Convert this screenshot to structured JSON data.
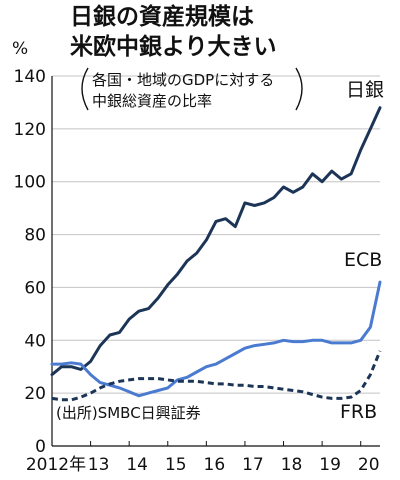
{
  "chart_data": {
    "type": "line",
    "title_lines": [
      "日銀の資産規模は",
      "米欧中銀より大きい"
    ],
    "subtitle_lines": [
      "各国・地域のGDPに対する",
      "中銀総資産の比率"
    ],
    "y_unit": "%",
    "ylim": [
      0,
      140
    ],
    "y_ticks": [
      0,
      20,
      40,
      60,
      80,
      100,
      120,
      140
    ],
    "xlim": [
      2012,
      2020.5
    ],
    "x_ticks": [
      {
        "value": 2012,
        "label": "2012年"
      },
      {
        "value": 2013,
        "label": "13"
      },
      {
        "value": 2014,
        "label": "14"
      },
      {
        "value": 2015,
        "label": "15"
      },
      {
        "value": 2016,
        "label": "16"
      },
      {
        "value": 2017,
        "label": "17"
      },
      {
        "value": 2018,
        "label": "18"
      },
      {
        "value": 2019,
        "label": "19"
      },
      {
        "value": 2020,
        "label": "20"
      }
    ],
    "grid": true,
    "series": [
      {
        "name": "日銀",
        "color": "#1c3557",
        "style": "solid",
        "x": [
          2012,
          2012.25,
          2012.5,
          2012.75,
          2013,
          2013.25,
          2013.5,
          2013.75,
          2014,
          2014.25,
          2014.5,
          2014.75,
          2015,
          2015.25,
          2015.5,
          2015.75,
          2016,
          2016.25,
          2016.5,
          2016.75,
          2017,
          2017.25,
          2017.5,
          2017.75,
          2018,
          2018.25,
          2018.5,
          2018.75,
          2019,
          2019.25,
          2019.5,
          2019.75,
          2020,
          2020.25,
          2020.5
        ],
        "values": [
          27,
          30,
          30,
          29,
          32,
          38,
          42,
          43,
          48,
          51,
          52,
          56,
          61,
          65,
          70,
          73,
          78,
          85,
          86,
          83,
          92,
          91,
          92,
          94,
          98,
          96,
          98,
          103,
          100,
          104,
          101,
          103,
          112,
          120,
          128
        ]
      },
      {
        "name": "ECB",
        "color": "#4a7bd0",
        "style": "solid",
        "x": [
          2012,
          2012.25,
          2012.5,
          2012.75,
          2013,
          2013.25,
          2013.5,
          2013.75,
          2014,
          2014.25,
          2014.5,
          2014.75,
          2015,
          2015.25,
          2015.5,
          2015.75,
          2016,
          2016.25,
          2016.5,
          2016.75,
          2017,
          2017.25,
          2017.5,
          2017.75,
          2018,
          2018.25,
          2018.5,
          2018.75,
          2019,
          2019.25,
          2019.5,
          2019.75,
          2020,
          2020.25,
          2020.5
        ],
        "values": [
          31,
          31,
          31.5,
          31,
          27,
          24,
          23,
          22,
          20.5,
          19,
          20,
          21,
          22,
          25,
          26,
          28,
          30,
          31,
          33,
          35,
          37,
          38,
          38.5,
          39,
          40,
          39.5,
          39.5,
          40,
          40,
          39,
          39,
          39,
          40,
          45,
          62
        ]
      },
      {
        "name": "FRB",
        "color": "#1c3557",
        "style": "dashed",
        "x": [
          2012,
          2012.25,
          2012.5,
          2012.75,
          2013,
          2013.25,
          2013.5,
          2013.75,
          2014,
          2014.25,
          2014.5,
          2014.75,
          2015,
          2015.25,
          2015.5,
          2015.75,
          2016,
          2016.25,
          2016.5,
          2016.75,
          2017,
          2017.25,
          2017.5,
          2017.75,
          2018,
          2018.25,
          2018.5,
          2018.75,
          2019,
          2019.25,
          2019.5,
          2019.75,
          2020,
          2020.25,
          2020.5
        ],
        "values": [
          18,
          17.5,
          17.5,
          18.5,
          20,
          22,
          23.5,
          24.5,
          25,
          25.5,
          25.5,
          25.5,
          25,
          24.5,
          24.5,
          24.5,
          24,
          23.5,
          23.5,
          23,
          23,
          22.5,
          22.5,
          22,
          21.5,
          21,
          20.5,
          19.5,
          18.5,
          18,
          18,
          18.5,
          21,
          27,
          36
        ]
      }
    ],
    "source_note": "(出所)SMBC日興証券"
  }
}
